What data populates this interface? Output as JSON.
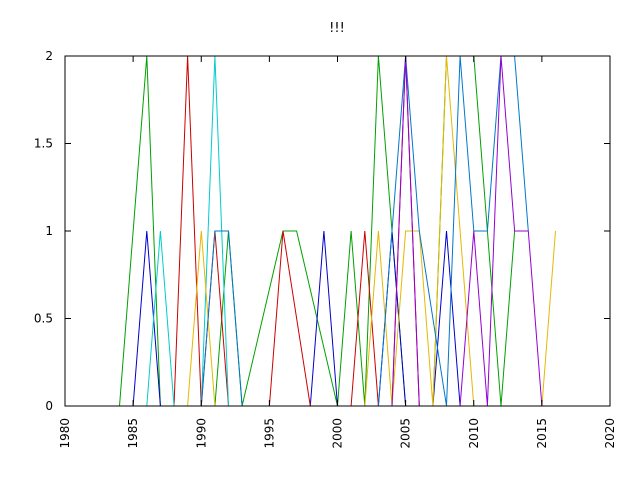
{
  "chart_data": {
    "type": "line",
    "title": "!!!",
    "xlabel": "",
    "ylabel": "",
    "xlim": [
      1980,
      2020
    ],
    "ylim": [
      0,
      2
    ],
    "x_ticks": [
      "1980",
      "1985",
      "1990",
      "1995",
      "2000",
      "2005",
      "2010",
      "2015",
      "2020"
    ],
    "y_ticks": [
      "0",
      "0.5",
      "1",
      "1.5",
      "2"
    ],
    "grid": false,
    "legend": "none",
    "series": [
      {
        "color": "#00a000",
        "x": [
          1984,
          1986,
          1987,
          1987,
          1990,
          1991,
          1992,
          1993,
          1996,
          1997,
          2000,
          2001,
          2002,
          2003,
          2005,
          2007,
          2008,
          2010,
          2011,
          2012,
          2013
        ],
        "y": [
          0,
          2,
          0,
          0,
          0,
          0,
          1,
          0,
          1,
          1,
          0,
          1,
          0,
          2,
          0,
          0,
          2,
          2,
          1,
          0,
          1
        ]
      },
      {
        "color": "#0000cc",
        "x": [
          1985,
          1986,
          1987,
          1987,
          1998,
          1999,
          2000,
          2003,
          2004,
          2005,
          2007,
          2008,
          2009,
          2010,
          2011
        ],
        "y": [
          0,
          1,
          0,
          0,
          0,
          1,
          0,
          0,
          1,
          0,
          0,
          1,
          0,
          0,
          0
        ]
      },
      {
        "color": "#cc0000",
        "x": [
          1988,
          1989,
          1990,
          1991,
          1992,
          1995,
          1996,
          1998,
          2001,
          2002,
          2003,
          2004,
          2005,
          2006
        ],
        "y": [
          0,
          2,
          0,
          1,
          0,
          0,
          1,
          0,
          0,
          1,
          0,
          0,
          2,
          0
        ]
      },
      {
        "color": "#00cccc",
        "x": [
          1986,
          1987,
          1988,
          1990,
          1991,
          1992
        ],
        "y": [
          0,
          1,
          0,
          0,
          2,
          0
        ]
      },
      {
        "color": "#e6b800",
        "x": [
          1989,
          1990,
          1991,
          2002,
          2003,
          2004,
          2005,
          2006,
          2007,
          2008,
          2009,
          2010,
          2015,
          2016
        ],
        "y": [
          0,
          1,
          0,
          0,
          1,
          0,
          1,
          1,
          0,
          2,
          1,
          0,
          0,
          1
        ]
      },
      {
        "color": "#0077cc",
        "x": [
          1990,
          1991,
          1992,
          1993,
          2003,
          2004,
          2005,
          2006,
          2008,
          2009,
          2010,
          2011,
          2012,
          2013,
          2014
        ],
        "y": [
          0,
          1,
          1,
          0,
          0,
          1,
          2,
          1,
          0,
          2,
          1,
          1,
          2,
          2,
          1
        ]
      },
      {
        "color": "#9400d3",
        "x": [
          2004,
          2005,
          2006,
          2007,
          2009,
          2010,
          2011,
          2012,
          2013,
          2014,
          2015
        ],
        "y": [
          0,
          2,
          0,
          0,
          0,
          1,
          0,
          2,
          1,
          1,
          0
        ]
      }
    ]
  }
}
